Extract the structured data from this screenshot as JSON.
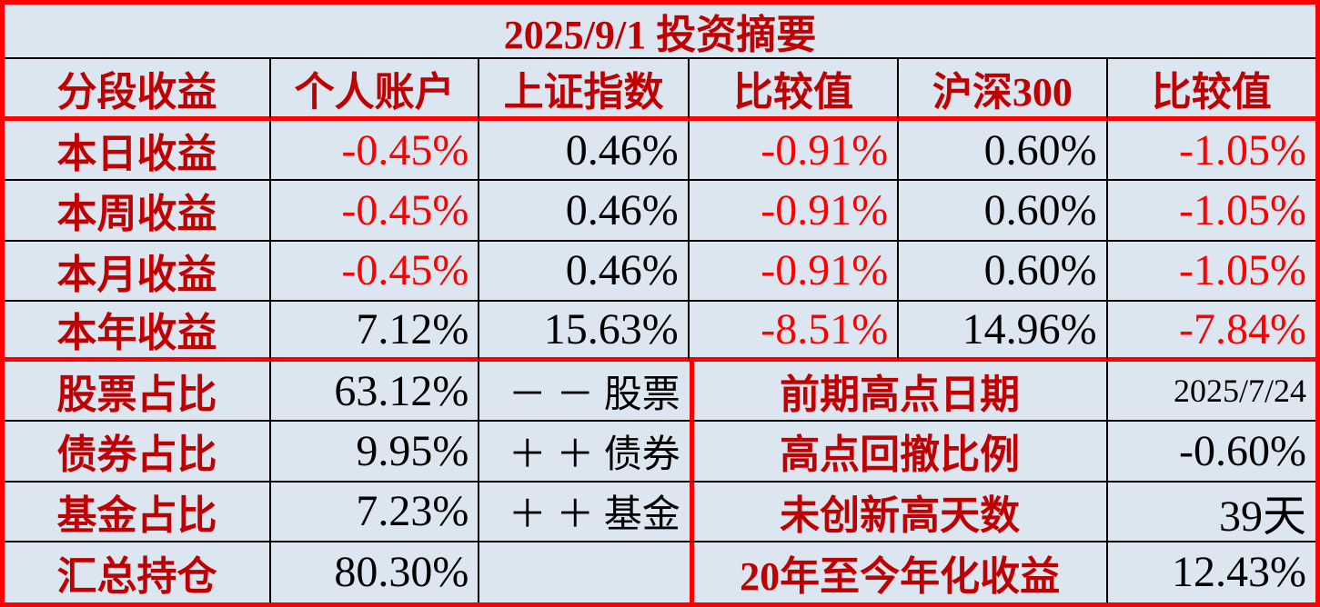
{
  "title": "2025/9/1 投资摘要",
  "colors": {
    "bg": "#dce6f1",
    "label-red": "#c00000",
    "neg-red": "#ff0000",
    "line-red": "#ff0000",
    "ink": "#000000"
  },
  "chart_data": {
    "type": "table",
    "title": "2025/9/1 投资摘要",
    "sections": {
      "performance": {
        "headers": [
          "分段收益",
          "个人账户",
          "上证指数",
          "比较值",
          "沪深300",
          "比较值"
        ],
        "rows": [
          [
            "本日收益",
            "-0.45%",
            "0.46%",
            "-0.91%",
            "0.60%",
            "-1.05%"
          ],
          [
            "本周收益",
            "-0.45%",
            "0.46%",
            "-0.91%",
            "0.60%",
            "-1.05%"
          ],
          [
            "本月收益",
            "-0.45%",
            "0.46%",
            "-0.91%",
            "0.60%",
            "-1.05%"
          ],
          [
            "本年收益",
            "7.12%",
            "15.63%",
            "-8.51%",
            "14.96%",
            "-7.84%"
          ]
        ]
      },
      "allocation": {
        "rows": [
          [
            "股票占比",
            "63.12%",
            "－ － 股票"
          ],
          [
            "债券占比",
            "9.95%",
            "＋ ＋ 债券"
          ],
          [
            "基金占比",
            "7.23%",
            "＋ ＋ 基金"
          ],
          [
            "汇总持仓",
            "80.30%",
            ""
          ]
        ]
      },
      "stats": {
        "rows": [
          [
            "前期高点日期",
            "2025/7/24"
          ],
          [
            "高点回撤比例",
            "-0.60%"
          ],
          [
            "未创新高天数",
            "39天"
          ],
          [
            "20年至今年化收益",
            "12.43%"
          ]
        ]
      }
    }
  }
}
